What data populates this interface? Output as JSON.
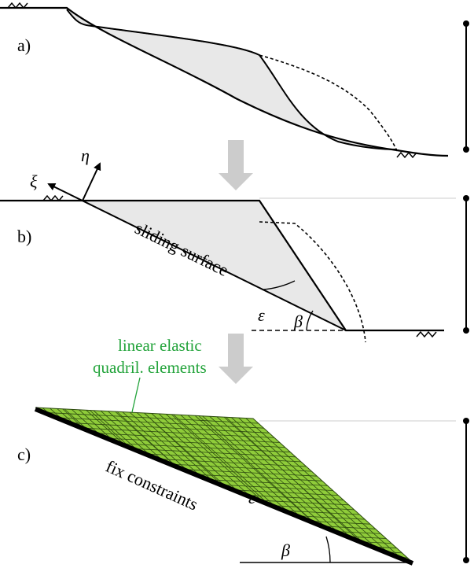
{
  "panel_a": {
    "label": "a)"
  },
  "panel_b": {
    "label": "b)",
    "xi": "ξ",
    "eta": "η",
    "sliding_surface": "sliding surface",
    "epsilon": "ε",
    "beta": "β"
  },
  "panel_c": {
    "label": "c)",
    "annotation_line1": "linear elastic",
    "annotation_line2": "quadril. elements",
    "fix_constraints": "fix constraints",
    "epsilon": "ε",
    "beta": "β"
  }
}
